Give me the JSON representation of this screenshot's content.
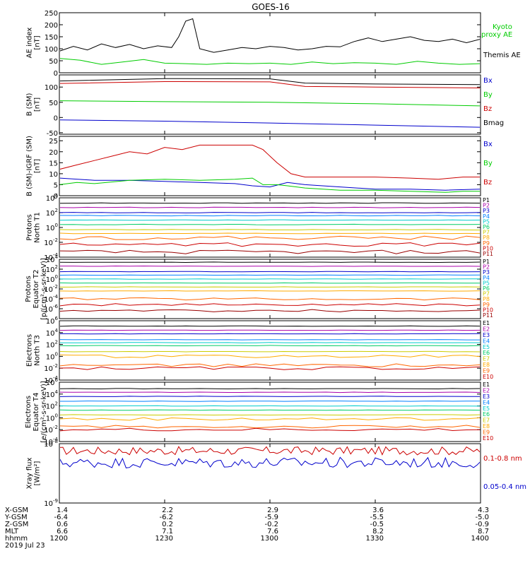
{
  "title": "GOES-16",
  "date": "2019 Jul 23",
  "ephemeris": {
    "labels": [
      "X-GSM",
      "Y-GSM",
      "Z-GSM",
      "MLT",
      "hhmm"
    ],
    "columns": [
      [
        "1.4",
        "-6.4",
        "0.6",
        "6.6",
        "1200"
      ],
      [
        "2.2",
        "-6.2",
        "0.2",
        "7.1",
        "1230"
      ],
      [
        "2.9",
        "-5.9",
        "-0.2",
        "7.6",
        "1300"
      ],
      [
        "3.6",
        "-5.5",
        "-0.5",
        "8.2",
        "1330"
      ],
      [
        "4.3",
        "-5.0",
        "-0.9",
        "8.7",
        "1400"
      ]
    ]
  },
  "chart_data": [
    {
      "id": "ae",
      "type": "line",
      "ylabel": [
        "AE index",
        "[nT]"
      ],
      "ylim": [
        0,
        250
      ],
      "yticks": [
        "0",
        "50",
        "100",
        "150",
        "200",
        "250"
      ],
      "legend": [
        {
          "label": "Kyoto",
          "color": "#00cc00"
        },
        {
          "label": "proxy AE",
          "color": "#00cc00"
        },
        {
          "label": "Themis AE",
          "color": "#000000"
        }
      ],
      "series": [
        {
          "name": "Themis AE",
          "color": "#000000",
          "x": [
            0,
            4,
            8,
            12,
            16,
            20,
            24,
            28,
            32,
            34,
            36,
            38,
            40,
            44,
            48,
            52,
            56,
            60,
            64,
            68,
            72,
            76,
            80,
            84,
            88,
            92,
            96,
            100,
            104,
            108,
            112,
            116,
            120
          ],
          "values": [
            90,
            110,
            95,
            120,
            105,
            118,
            100,
            112,
            105,
            150,
            215,
            225,
            100,
            85,
            95,
            105,
            100,
            110,
            105,
            95,
            100,
            110,
            108,
            130,
            145,
            130,
            140,
            150,
            135,
            130,
            140,
            125,
            140
          ]
        },
        {
          "name": "Kyoto proxy AE",
          "color": "#00cc00",
          "x": [
            0,
            6,
            12,
            18,
            24,
            30,
            36,
            42,
            48,
            54,
            60,
            66,
            72,
            78,
            84,
            90,
            96,
            102,
            108,
            114,
            120
          ],
          "values": [
            60,
            52,
            35,
            45,
            55,
            40,
            38,
            35,
            40,
            38,
            40,
            35,
            45,
            38,
            42,
            40,
            35,
            48,
            40,
            35,
            38
          ]
        }
      ]
    },
    {
      "id": "bsm",
      "type": "line",
      "ylabel": [
        "B (SM)",
        "[nT]"
      ],
      "ylim": [
        -55,
        140
      ],
      "yticks": [
        "-50",
        "0",
        "50",
        "100"
      ],
      "legend": [
        {
          "label": "Bx",
          "color": "#0000cc"
        },
        {
          "label": "By",
          "color": "#00cc00"
        },
        {
          "label": "Bz",
          "color": "#cc0000"
        },
        {
          "label": "Bmag",
          "color": "#000000"
        }
      ],
      "series": [
        {
          "name": "Bmag",
          "color": "#000000",
          "x": [
            0,
            30,
            60,
            70,
            90,
            120
          ],
          "values": [
            120,
            128,
            127,
            113,
            110,
            108
          ]
        },
        {
          "name": "Bz",
          "color": "#cc0000",
          "x": [
            0,
            30,
            60,
            70,
            90,
            120
          ],
          "values": [
            112,
            118,
            117,
            102,
            100,
            97
          ]
        },
        {
          "name": "By",
          "color": "#00cc00",
          "x": [
            0,
            30,
            60,
            90,
            120
          ],
          "values": [
            55,
            52,
            50,
            45,
            38
          ]
        },
        {
          "name": "Bx",
          "color": "#0000cc",
          "x": [
            0,
            30,
            60,
            90,
            120
          ],
          "values": [
            -8,
            -12,
            -18,
            -25,
            -32
          ]
        }
      ]
    },
    {
      "id": "bdiff",
      "type": "line",
      "ylabel": [
        "B (SM)-IGRF (SM)",
        "[nT]"
      ],
      "ylim": [
        0,
        27
      ],
      "yticks": [
        "0",
        "5",
        "10",
        "15",
        "20",
        "25"
      ],
      "legend": [
        {
          "label": "Bx",
          "color": "#0000cc"
        },
        {
          "label": "By",
          "color": "#00cc00"
        },
        {
          "label": "Bz",
          "color": "#cc0000"
        }
      ],
      "series": [
        {
          "name": "Bz",
          "color": "#cc0000",
          "x": [
            0,
            5,
            10,
            15,
            20,
            25,
            30,
            35,
            40,
            45,
            50,
            55,
            58,
            62,
            66,
            70,
            80,
            90,
            100,
            108,
            115,
            120
          ],
          "values": [
            12,
            14,
            16,
            18,
            20,
            19,
            22,
            21,
            23,
            23,
            23,
            23,
            21,
            15,
            10,
            8.5,
            8.5,
            8.5,
            8,
            7.5,
            8.5,
            8.5
          ]
        },
        {
          "name": "Bx",
          "color": "#0000cc",
          "x": [
            0,
            10,
            20,
            30,
            40,
            50,
            55,
            60,
            65,
            70,
            80,
            90,
            100,
            110,
            120
          ],
          "values": [
            8,
            7,
            7,
            6.5,
            6,
            5.5,
            4.5,
            4,
            6,
            5,
            4,
            3,
            3,
            2.5,
            3
          ]
        },
        {
          "name": "By",
          "color": "#00cc00",
          "x": [
            0,
            5,
            10,
            20,
            30,
            40,
            50,
            55,
            58,
            62,
            65,
            70,
            80,
            90,
            100,
            110,
            115,
            120
          ],
          "values": [
            5,
            6,
            5.5,
            7,
            7.5,
            7,
            7.5,
            8,
            5,
            5,
            4.5,
            3.5,
            2.5,
            2.5,
            2,
            1.5,
            2,
            2
          ]
        }
      ]
    },
    {
      "id": "p_north",
      "type": "line",
      "yscale": "log",
      "ylabel": [
        "Protons",
        "North T1"
      ],
      "ylim": [
        -4,
        4
      ],
      "yticks": [
        "10^-4",
        "10^-2",
        "10^0",
        "10^2",
        "10^4"
      ],
      "channels": [
        "P1",
        "P2",
        "P3",
        "P4",
        "P5",
        "P6",
        "P7",
        "P8",
        "P9",
        "P10",
        "P11"
      ],
      "colors": [
        "#000000",
        "#aa00aa",
        "#0000cc",
        "#0080ff",
        "#00cccc",
        "#00cc66",
        "#cccc00",
        "#ffaa00",
        "#ff6600",
        "#cc0000",
        "#990000"
      ],
      "levels": [
        3.3,
        2.7,
        2.0,
        1.6,
        1.0,
        0.4,
        -0.3,
        -0.8,
        -1.4,
        -2.3,
        -3.3
      ]
    },
    {
      "id": "p_equator",
      "type": "line",
      "yscale": "log",
      "ylabel": [
        "Protons",
        "Equator T2",
        "[p/(cm²-s-sr-keV)]"
      ],
      "ylim": [
        -8,
        4
      ],
      "yticks": [
        "10^-6",
        "10^-4",
        "10^-2",
        "10^0",
        "10^2",
        "10^4"
      ],
      "channels": [
        "P1",
        "P2",
        "P3",
        "P4",
        "P5",
        "P6",
        "P7",
        "P8",
        "P9",
        "P10",
        "P11"
      ],
      "colors": [
        "#000000",
        "#aa00aa",
        "#0000cc",
        "#0080ff",
        "#00cccc",
        "#00cc66",
        "#cccc00",
        "#ffaa00",
        "#ff6600",
        "#cc0000",
        "#990000"
      ],
      "levels": [
        3.4,
        2.6,
        1.5,
        0.8,
        0.0,
        -0.8,
        -1.6,
        -2.4,
        -4.0,
        -5.2,
        -6.4
      ]
    },
    {
      "id": "e_north",
      "type": "line",
      "yscale": "log",
      "ylabel": [
        "Electrons",
        "North T3"
      ],
      "ylim": [
        -4,
        6
      ],
      "yticks": [
        "10^-4",
        "10^-2",
        "10^0",
        "10^2",
        "10^4",
        "10^6"
      ],
      "channels": [
        "E1",
        "E2",
        "E3",
        "E4",
        "E5",
        "E6",
        "E7",
        "E8",
        "E9",
        "E10"
      ],
      "colors": [
        "#000000",
        "#aa00aa",
        "#0000cc",
        "#0080ff",
        "#00cccc",
        "#00cc66",
        "#cccc00",
        "#ffaa00",
        "#ff6600",
        "#cc0000"
      ],
      "levels": [
        5.1,
        4.4,
        3.8,
        2.8,
        2.3,
        1.8,
        0.8,
        0.0,
        -1.5,
        -2.0
      ]
    },
    {
      "id": "e_equator",
      "type": "line",
      "yscale": "log",
      "ylabel": [
        "Electrons",
        "Equator T4",
        "[e/(cm²-s-sr-keV)]"
      ],
      "ylim": [
        -4,
        6
      ],
      "yticks": [
        "10^-4",
        "10^-2",
        "10^0",
        "10^2",
        "10^4",
        "10^6"
      ],
      "channels": [
        "E1",
        "E2",
        "E3",
        "E4",
        "E5",
        "E6",
        "E7",
        "E8",
        "E9",
        "E10"
      ],
      "colors": [
        "#000000",
        "#aa00aa",
        "#0000cc",
        "#0080ff",
        "#00cccc",
        "#00cc66",
        "#cccc00",
        "#ffaa00",
        "#ff6600",
        "#cc0000"
      ],
      "levels": [
        4.9,
        4.3,
        3.6,
        2.8,
        2.0,
        1.3,
        0.5,
        -0.2,
        -1.5,
        -2.0
      ]
    },
    {
      "id": "xray",
      "type": "line",
      "yscale": "log",
      "ylabel": [
        "Xray flux",
        "[W/m²]"
      ],
      "ylim": [
        -9,
        -8
      ],
      "yticks": [
        "10^-9",
        "10^-8"
      ],
      "legend": [
        {
          "label": "0.1-0.8 nm",
          "color": "#cc0000"
        },
        {
          "label": "0.05-0.4 nm",
          "color": "#0000cc"
        }
      ],
      "series": [
        {
          "name": "0.1-0.8 nm",
          "color": "#cc0000",
          "center": -8.12,
          "amp": 0.07
        },
        {
          "name": "0.05-0.4 nm",
          "color": "#0000cc",
          "center": -8.32,
          "amp": 0.09
        }
      ]
    }
  ],
  "x_axis": {
    "range": [
      0,
      120
    ],
    "tick_positions": [
      0,
      30,
      60,
      90,
      120
    ]
  }
}
